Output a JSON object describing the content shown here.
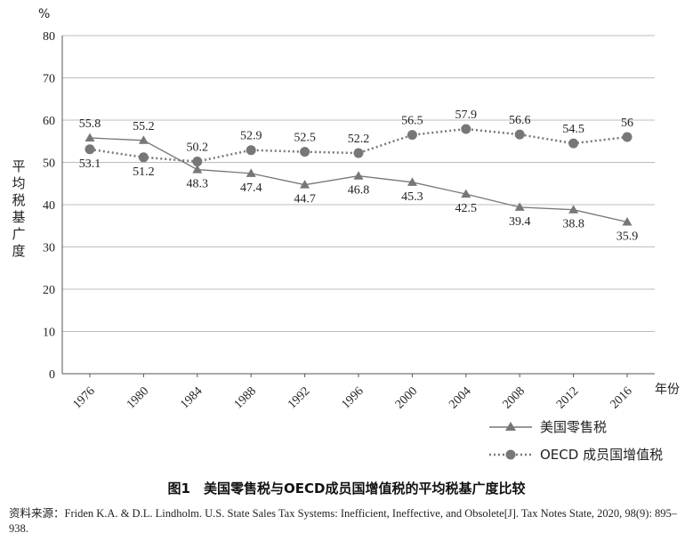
{
  "chart_data": {
    "type": "line",
    "x": [
      "1976",
      "1980",
      "1984",
      "1988",
      "1992",
      "1996",
      "2000",
      "2004",
      "2008",
      "2012",
      "2016"
    ],
    "series": [
      {
        "name": "美国零售税",
        "marker": "triangle",
        "line": "solid",
        "color": "#777777",
        "values": [
          55.8,
          55.2,
          48.3,
          47.4,
          44.7,
          46.8,
          45.3,
          42.5,
          39.4,
          38.8,
          35.9
        ],
        "labels": [
          "55.8",
          "55.2",
          "48.3",
          "47.4",
          "44.7",
          "46.8",
          "45.3",
          "42.5",
          "39.4",
          "38.8",
          "35.9"
        ]
      },
      {
        "name": "OECD 成员国增值税",
        "marker": "circle",
        "line": "dotted",
        "color": "#777777",
        "values": [
          53.1,
          51.2,
          50.2,
          52.9,
          52.5,
          52.2,
          56.5,
          57.9,
          56.6,
          54.5,
          56
        ],
        "labels": [
          "53.1",
          "51.2",
          "50.2",
          "52.9",
          "52.5",
          "52.2",
          "56.5",
          "57.9",
          "56.6",
          "54.5",
          "56"
        ]
      }
    ],
    "ylim": [
      0,
      80
    ],
    "yticks": [
      "0",
      "10",
      "20",
      "30",
      "40",
      "50",
      "60",
      "70",
      "80"
    ],
    "y_unit": "%",
    "ylabel": "平均税基广度",
    "xlabel": "年份",
    "grid": "horizontal",
    "legend": "bottom-right"
  },
  "caption": "图1　美国零售税与OECD成员国增值税的平均税基广度比较",
  "source": {
    "label": "资料来源：",
    "text": "Friden K.A. & D.L. Lindholm. U.S. State Sales Tax Systems: Inefficient, Ineffective, and Obsolete[J]. Tax Notes State, 2020, 98(9): 895–938."
  }
}
